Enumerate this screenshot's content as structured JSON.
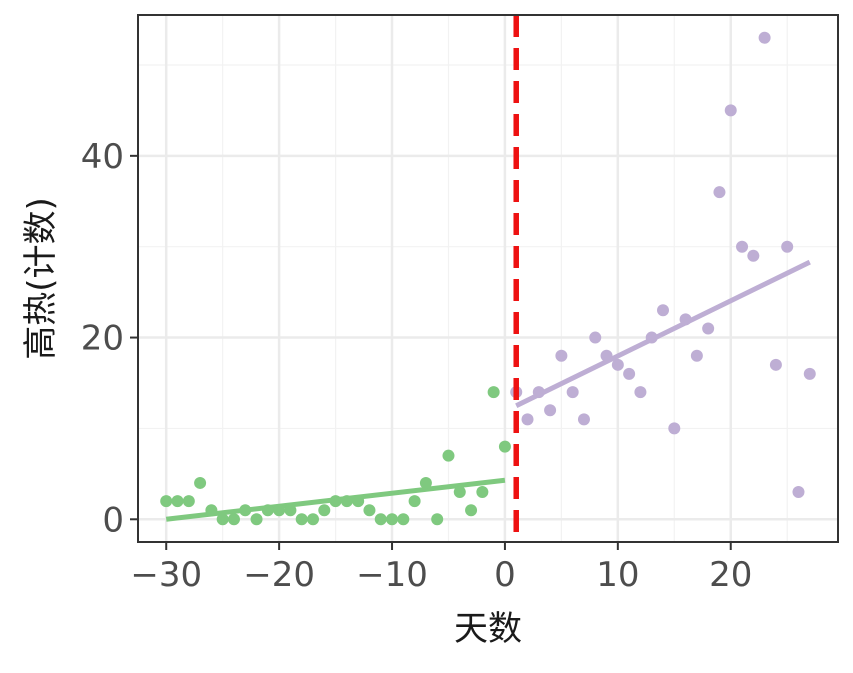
{
  "chart_data": {
    "type": "scatter",
    "title": "",
    "xlabel": "天数",
    "ylabel": "高热(计数)",
    "xlim": [
      -32.5,
      29.5
    ],
    "ylim": [
      -2.5,
      55.5
    ],
    "x_ticks": [
      -30,
      -20,
      -10,
      0,
      10,
      20
    ],
    "x_tick_labels": [
      "−30",
      "−20",
      "−10",
      "0",
      "10",
      "20"
    ],
    "y_ticks": [
      0,
      20,
      40
    ],
    "y_tick_labels": [
      "0",
      "20",
      "40"
    ],
    "grid": true,
    "cutoff_x": 1,
    "cutoff_color": "#ee1111",
    "series": [
      {
        "color": "#7fc97f",
        "points": [
          [
            -30,
            2
          ],
          [
            -29,
            2
          ],
          [
            -28,
            2
          ],
          [
            -27,
            4
          ],
          [
            -26,
            1
          ],
          [
            -25,
            0
          ],
          [
            -24,
            0
          ],
          [
            -23,
            1
          ],
          [
            -22,
            0
          ],
          [
            -21,
            1
          ],
          [
            -20,
            1
          ],
          [
            -19,
            1
          ],
          [
            -18,
            0
          ],
          [
            -17,
            0
          ],
          [
            -16,
            1
          ],
          [
            -15,
            2
          ],
          [
            -14,
            2
          ],
          [
            -13,
            2
          ],
          [
            -12,
            1
          ],
          [
            -11,
            0
          ],
          [
            -10,
            0
          ],
          [
            -9,
            0
          ],
          [
            -8,
            2
          ],
          [
            -7,
            4
          ],
          [
            -6,
            0
          ],
          [
            -5,
            7
          ],
          [
            -4,
            3
          ],
          [
            -3,
            1
          ],
          [
            -2,
            3
          ],
          [
            -1,
            14
          ],
          [
            0,
            8
          ]
        ],
        "fit": [
          [
            -30,
            0
          ],
          [
            0,
            4.3
          ]
        ]
      },
      {
        "color": "#beaed4",
        "points": [
          [
            1,
            14
          ],
          [
            2,
            11
          ],
          [
            3,
            14
          ],
          [
            4,
            12
          ],
          [
            5,
            18
          ],
          [
            6,
            14
          ],
          [
            7,
            11
          ],
          [
            8,
            20
          ],
          [
            9,
            18
          ],
          [
            10,
            17
          ],
          [
            11,
            16
          ],
          [
            12,
            14
          ],
          [
            13,
            20
          ],
          [
            14,
            23
          ],
          [
            15,
            10
          ],
          [
            16,
            22
          ],
          [
            17,
            18
          ],
          [
            18,
            21
          ],
          [
            19,
            36
          ],
          [
            20,
            45
          ],
          [
            21,
            30
          ],
          [
            22,
            29
          ],
          [
            23,
            53
          ],
          [
            24,
            17
          ],
          [
            25,
            30
          ],
          [
            26,
            3
          ],
          [
            27,
            16
          ]
        ],
        "fit": [
          [
            1,
            12.5
          ],
          [
            27,
            28.3
          ]
        ]
      }
    ]
  }
}
